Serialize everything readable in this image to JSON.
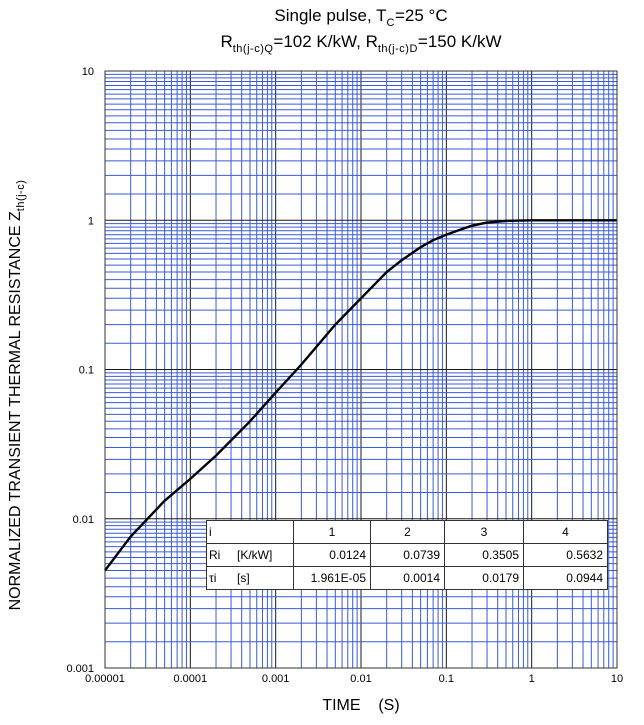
{
  "chart_data": {
    "type": "line",
    "title_line1": "Single pulse, T",
    "title_line1_sub": "C",
    "title_line1_suffix": "=25 °C",
    "title_line2": {
      "r1": "R",
      "r1_sub": "th(j-c)Q",
      "r1_value": "=102 K/kW, ",
      "r2": "R",
      "r2_sub": "th(j-c)D",
      "r2_value": "=150 K/kW"
    },
    "xlabel": "TIME    (S)",
    "ylabel": "NORMALIZED TRANSIENT THERMAL RESISTANCE Z",
    "ylabel_sub": "th(j-c)",
    "x_scale": "log",
    "y_scale": "log",
    "xlim": [
      1e-05,
      10
    ],
    "ylim": [
      0.001,
      10
    ],
    "x_ticks": [
      "0.00001",
      "0.0001",
      "0.001",
      "0.01",
      "0.1",
      "1",
      "10"
    ],
    "y_ticks": [
      "10",
      "1",
      "0.1",
      "0.01",
      "0.001"
    ],
    "grid": true,
    "colors": {
      "grid": "#3a5bd6",
      "grid_major": "#1a1a1a",
      "curve": "#000000"
    },
    "series": [
      {
        "x": [
          1e-05,
          2e-05,
          5e-05,
          0.0001,
          0.0002,
          0.0005,
          0.001,
          0.002,
          0.005,
          0.01,
          0.02,
          0.03,
          0.05,
          0.07,
          0.1,
          0.15,
          0.2,
          0.3,
          0.5,
          1,
          2,
          5,
          10
        ],
        "y": [
          0.0045,
          0.0076,
          0.0132,
          0.0185,
          0.0265,
          0.045,
          0.07,
          0.108,
          0.2,
          0.3,
          0.45,
          0.54,
          0.66,
          0.735,
          0.8,
          0.87,
          0.92,
          0.965,
          0.99,
          1.0,
          1.0,
          1.0,
          1.0
        ]
      }
    ]
  },
  "table": {
    "header": {
      "label": "i",
      "cols": [
        "1",
        "2",
        "3",
        "4"
      ]
    },
    "rows": [
      {
        "label": "Ri",
        "unit": "[K/kW]",
        "values": [
          "0.0124",
          "0.0739",
          "0.3505",
          "0.5632"
        ]
      },
      {
        "label": "τi",
        "unit": "[s]",
        "values": [
          "1.961E-05",
          "0.0014",
          "0.0179",
          "0.0944"
        ]
      }
    ]
  }
}
